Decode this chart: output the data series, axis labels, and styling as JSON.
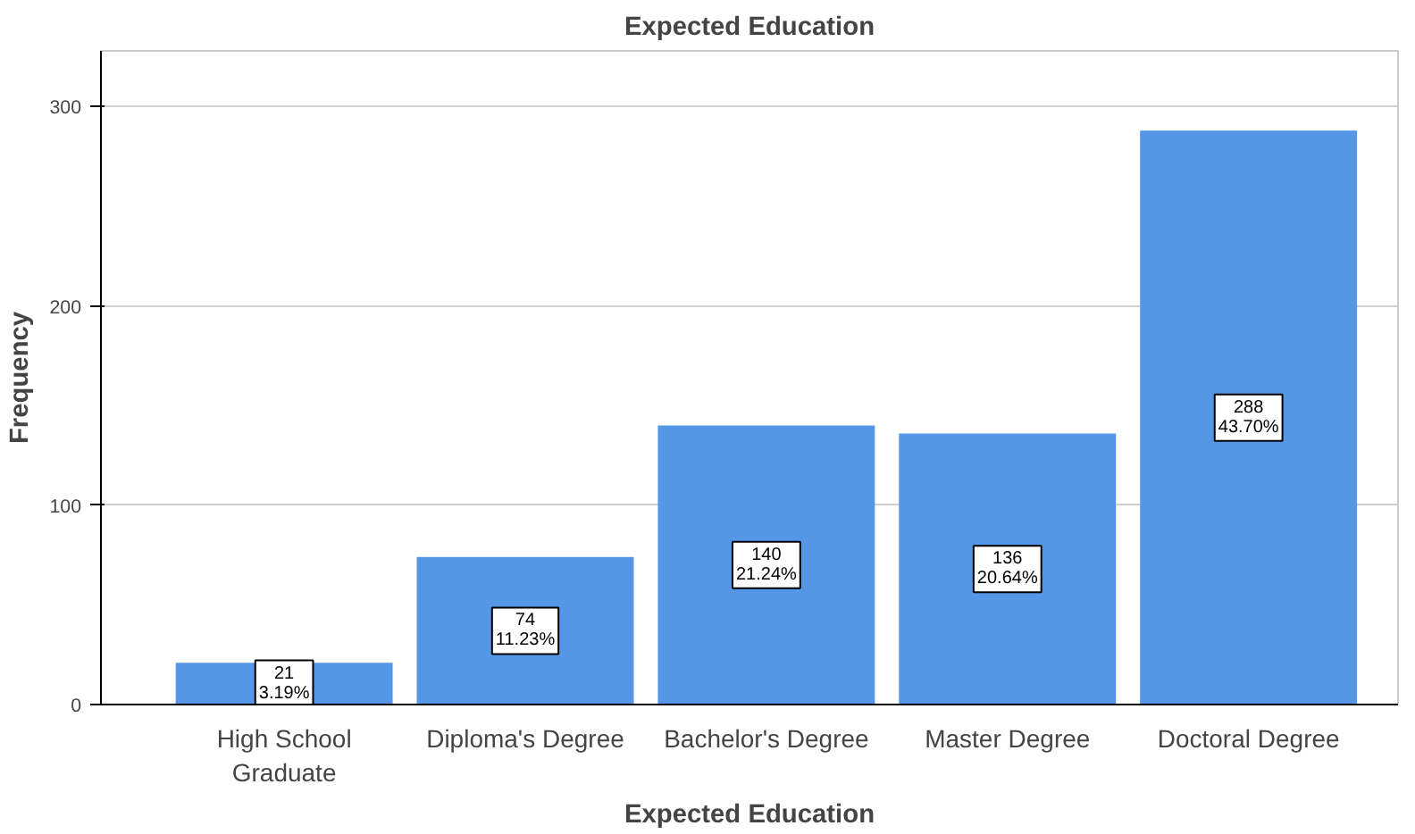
{
  "chart_data": {
    "type": "bar",
    "title": "Expected Education",
    "xlabel": "Expected Education",
    "ylabel": "Frequency",
    "categories": [
      "High School Graduate",
      "Diploma's Degree",
      "Bachelor's Degree",
      "Master Degree",
      "Doctoral Degree"
    ],
    "values": [
      21,
      74,
      140,
      136,
      288
    ],
    "value_labels": [
      "21\n3.19%",
      "74\n11.23%",
      "140\n21.24%",
      "136\n20.64%",
      "288\n43.70%"
    ],
    "color": "#5596e6",
    "ylim": [
      0,
      328
    ],
    "yticks": [
      0,
      100,
      200,
      300
    ],
    "grid": "y"
  }
}
